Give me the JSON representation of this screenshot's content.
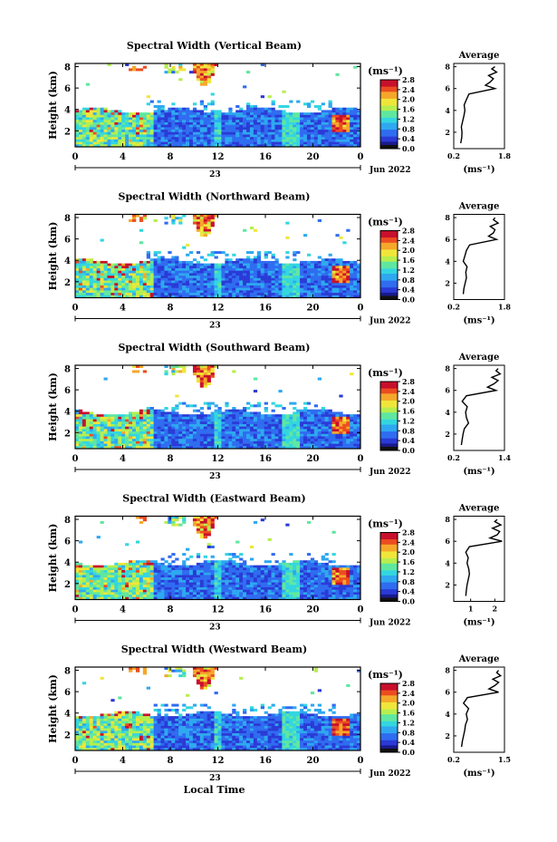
{
  "figure": {
    "month_label": "Jun 2022",
    "x_axis_title": "Local Time",
    "colorbar_unit": "(ms⁻¹)",
    "colorbar_ticks": [
      "0.0",
      "0.4",
      "0.8",
      "1.2",
      "1.6",
      "2.0",
      "2.4",
      "2.8"
    ],
    "avg_title": "Average",
    "avg_unit": "(ms⁻¹)",
    "x_ticks": [
      "0",
      "4",
      "8",
      "12",
      "16",
      "20",
      "0"
    ],
    "date_tick": "23",
    "y_label": "Height (km)",
    "y_ticks": [
      "8",
      "6",
      "4",
      "2"
    ],
    "colors": {
      "colormap": [
        "#1a1a8c",
        "#2a3ad6",
        "#2f6cf0",
        "#2ea8f0",
        "#33d6e0",
        "#5fe7a0",
        "#b7ee4e",
        "#f0e63a",
        "#f5a72a",
        "#ec4d20",
        "#c8102c"
      ],
      "no_data": "#ffffff",
      "colorbar_dark_bottom": "#111111"
    }
  },
  "panels": [
    {
      "title": "Spectral Width (Vertical Beam)",
      "avg_xticks": [
        "0.2",
        "1.8"
      ],
      "avg_xmin": 0.2,
      "avg_xmax": 1.8
    },
    {
      "title": "Spectral Width (Northward Beam)",
      "avg_xticks": [
        "0.2",
        "1.8"
      ],
      "avg_xmin": 0.2,
      "avg_xmax": 1.8
    },
    {
      "title": "Spectral Width (Southward Beam)",
      "avg_xticks": [
        "0.2",
        "1.4"
      ],
      "avg_xmin": 0.2,
      "avg_xmax": 1.4
    },
    {
      "title": "Spectral Width (Eastward Beam)",
      "avg_xticks": [
        "1",
        "2"
      ],
      "avg_xmin": 0.3,
      "avg_xmax": 2.4
    },
    {
      "title": "Spectral Width (Westward Beam)",
      "avg_xticks": [
        "0.2",
        "1.5"
      ],
      "avg_xmin": 0.2,
      "avg_xmax": 1.5
    }
  ],
  "chart_data": [
    {
      "type": "heatmap",
      "title": "Spectral Width (Vertical Beam)",
      "xlabel": "",
      "ylabel": "Height (km)",
      "xlim": [
        0,
        24
      ],
      "ylim": [
        0.5,
        8.3
      ],
      "clim": [
        0.0,
        2.8
      ],
      "unit": "ms⁻¹"
    },
    {
      "type": "line",
      "title": "Average",
      "xlabel": "(ms⁻¹)",
      "ylabel": "",
      "xlim": [
        0.2,
        1.8
      ],
      "ylim": [
        0.5,
        8.3
      ],
      "x": [
        0.42,
        0.45,
        0.46,
        0.44,
        0.48,
        0.52,
        0.55,
        0.53,
        0.6,
        0.68,
        1.5,
        1.2,
        1.35,
        1.45,
        1.3,
        1.55,
        1.4,
        1.5
      ],
      "y": [
        1,
        1.5,
        2,
        2.5,
        3,
        3.5,
        4,
        4.5,
        5,
        5.5,
        6,
        6.3,
        6.6,
        6.9,
        7.2,
        7.5,
        7.8,
        8
      ]
    },
    {
      "type": "heatmap",
      "title": "Spectral Width (Northward Beam)",
      "xlabel": "",
      "ylabel": "Height (km)",
      "xlim": [
        0,
        24
      ],
      "ylim": [
        0.5,
        8.3
      ],
      "clim": [
        0.0,
        2.8
      ],
      "unit": "ms⁻¹"
    },
    {
      "type": "line",
      "title": "Average",
      "xlabel": "(ms⁻¹)",
      "ylabel": "",
      "xlim": [
        0.2,
        1.8
      ],
      "ylim": [
        0.5,
        8.3
      ],
      "x": [
        0.5,
        0.52,
        0.56,
        0.6,
        0.58,
        0.62,
        0.5,
        0.55,
        0.6,
        0.7,
        1.55,
        1.3,
        1.45,
        1.5,
        1.35,
        1.6,
        1.45,
        1.5
      ],
      "y": [
        1,
        1.5,
        2,
        2.5,
        3,
        3.5,
        4,
        4.5,
        5,
        5.5,
        6,
        6.3,
        6.6,
        6.9,
        7.2,
        7.5,
        7.8,
        8
      ]
    },
    {
      "type": "heatmap",
      "title": "Spectral Width (Southward Beam)",
      "xlabel": "",
      "ylabel": "Height (km)",
      "xlim": [
        0,
        24
      ],
      "ylim": [
        0.5,
        8.3
      ],
      "clim": [
        0.0,
        2.8
      ],
      "unit": "ms⁻¹"
    },
    {
      "type": "line",
      "title": "Average",
      "xlabel": "(ms⁻¹)",
      "ylabel": "",
      "xlim": [
        0.2,
        1.4
      ],
      "ylim": [
        0.5,
        8.3
      ],
      "x": [
        0.38,
        0.4,
        0.42,
        0.45,
        0.55,
        0.5,
        0.48,
        0.52,
        0.4,
        0.5,
        1.2,
        1.0,
        1.15,
        1.25,
        1.1,
        1.3,
        1.2,
        1.25
      ],
      "y": [
        1,
        1.5,
        2,
        2.5,
        3,
        3.5,
        4,
        4.5,
        5,
        5.5,
        6,
        6.3,
        6.6,
        6.9,
        7.2,
        7.5,
        7.8,
        8
      ]
    },
    {
      "type": "heatmap",
      "title": "Spectral Width (Eastward Beam)",
      "xlabel": "",
      "ylabel": "Height (km)",
      "xlim": [
        0,
        24
      ],
      "ylim": [
        0.5,
        8.3
      ],
      "clim": [
        0.0,
        2.8
      ],
      "unit": "ms⁻¹"
    },
    {
      "type": "line",
      "title": "Average",
      "xlabel": "(ms⁻¹)",
      "ylabel": "",
      "xlim": [
        0.3,
        2.4
      ],
      "ylim": [
        0.5,
        8.3
      ],
      "x": [
        0.8,
        0.82,
        0.85,
        0.9,
        0.95,
        0.92,
        0.85,
        0.9,
        0.8,
        0.95,
        2.3,
        1.8,
        2.1,
        2.2,
        1.9,
        2.25,
        2.0,
        2.1
      ],
      "y": [
        1,
        1.5,
        2,
        2.5,
        3,
        3.5,
        4,
        4.5,
        5,
        5.5,
        6,
        6.3,
        6.6,
        6.9,
        7.2,
        7.5,
        7.8,
        8
      ]
    },
    {
      "type": "heatmap",
      "title": "Spectral Width (Westward Beam)",
      "xlabel": "Local Time",
      "ylabel": "Height (km)",
      "xlim": [
        0,
        24
      ],
      "ylim": [
        0.5,
        8.3
      ],
      "clim": [
        0.0,
        2.8
      ],
      "unit": "ms⁻¹"
    },
    {
      "type": "line",
      "title": "Average",
      "xlabel": "(ms⁻¹)",
      "ylabel": "",
      "xlim": [
        0.2,
        1.5
      ],
      "ylim": [
        0.5,
        8.3
      ],
      "x": [
        0.4,
        0.42,
        0.45,
        0.48,
        0.5,
        0.55,
        0.52,
        0.58,
        0.45,
        0.55,
        1.35,
        1.1,
        1.25,
        1.35,
        1.2,
        1.4,
        1.3,
        1.35
      ],
      "y": [
        1,
        1.5,
        2,
        2.5,
        3,
        3.5,
        4,
        4.5,
        5,
        5.5,
        6,
        6.3,
        6.6,
        6.9,
        7.2,
        7.5,
        7.8,
        8
      ]
    }
  ]
}
